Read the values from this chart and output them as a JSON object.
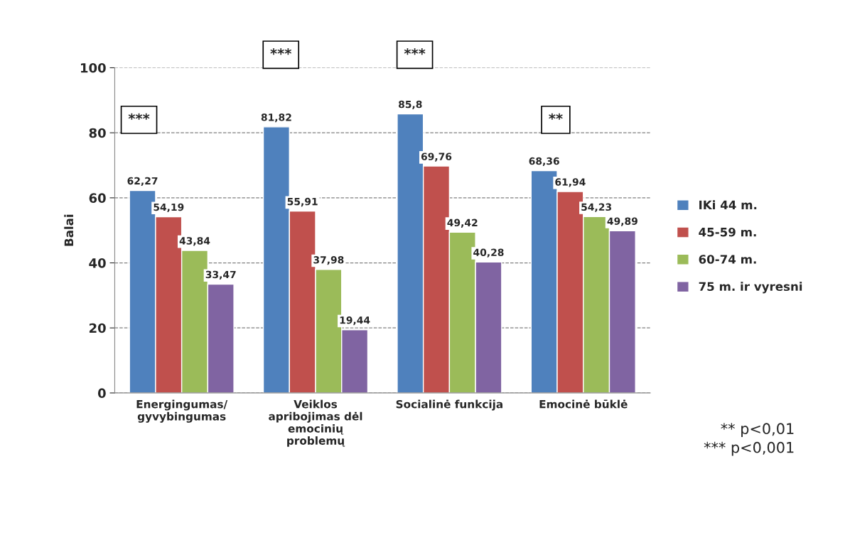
{
  "chart_data": {
    "type": "bar",
    "ylabel": "Balai",
    "categories": [
      "Energingumas/\ngyvybingumas",
      "Veiklos\napribojimas dėl\nemocinių\nproblemų",
      "Socialinė funkcija",
      "Emocinė būklė"
    ],
    "series": [
      {
        "name": "IKi 44 m.",
        "color": "#4f81bd",
        "values": [
          62.27,
          81.82,
          85.8,
          68.36
        ],
        "value_labels": [
          "62,27",
          "81,82",
          "85,8",
          "68,36"
        ]
      },
      {
        "name": "45-59 m.",
        "color": "#c0504d",
        "values": [
          54.19,
          55.91,
          69.76,
          61.94
        ],
        "value_labels": [
          "54,19",
          "55,91",
          "69,76",
          "61,94"
        ]
      },
      {
        "name": "60-74 m.",
        "color": "#9bbb59",
        "values": [
          43.84,
          37.98,
          49.42,
          54.23
        ],
        "value_labels": [
          "43,84",
          "37,98",
          "49,42",
          "54,23"
        ]
      },
      {
        "name": "75 m. ir vyresni",
        "color": "#8064a2",
        "values": [
          33.47,
          19.44,
          40.28,
          49.89
        ],
        "value_labels": [
          "33,47",
          "19,44",
          "40,28",
          "49,89"
        ]
      }
    ],
    "ylim": [
      0,
      100
    ],
    "yticks": [
      0,
      20,
      40,
      60,
      80,
      100
    ],
    "grid": "y",
    "legend": "right",
    "annotations": [
      "***",
      "***",
      "***",
      "**",
      "** p<0,01\n*** p<0,001"
    ]
  }
}
